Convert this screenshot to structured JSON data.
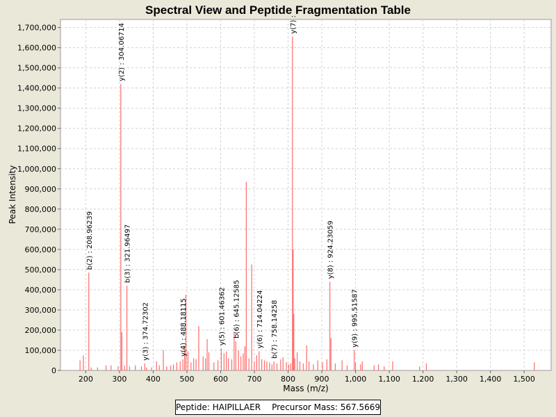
{
  "colors": {
    "background": "#eae8d9",
    "plot_bg": "#ffffff",
    "peak": "#ff6a6a",
    "grid": "#d0d0d0",
    "text": "#000000"
  },
  "footer": {
    "peptide": "Peptide: HAIPILLAER",
    "precursor": "Precursor Mass: 567.5669"
  },
  "chart_data": {
    "type": "bar",
    "title": "Spectral View and Peptide Fragmentation Table",
    "xlabel": "Mass (m/z)",
    "ylabel": "Peak Intensity",
    "xlim": [
      125,
      1580
    ],
    "ylim": [
      0,
      1740000
    ],
    "grid": true,
    "x_ticks": [
      200,
      300,
      400,
      500,
      600,
      700,
      800,
      900,
      1000,
      1100,
      1200,
      1300,
      1400,
      1500
    ],
    "x_tick_labels": [
      "200",
      "300",
      "400",
      "500",
      "600",
      "700",
      "800",
      "900",
      "1,000",
      "1,100",
      "1,200",
      "1,300",
      "1,400",
      "1,500"
    ],
    "y_ticks": [
      0,
      100000,
      200000,
      300000,
      400000,
      500000,
      600000,
      700000,
      800000,
      900000,
      1000000,
      1100000,
      1200000,
      1300000,
      1400000,
      1500000,
      1600000,
      1700000
    ],
    "y_tick_labels": [
      "0",
      "100,000",
      "200,000",
      "300,000",
      "400,000",
      "500,000",
      "600,000",
      "700,000",
      "800,000",
      "900,000",
      "1,000,000",
      "1,100,000",
      "1,200,000",
      "1,300,000",
      "1,400,000",
      "1,500,000",
      "1,600,000",
      "1,700,000"
    ],
    "peaks": [
      [
        183,
        50000
      ],
      [
        193,
        75000
      ],
      [
        209,
        485000
      ],
      [
        216,
        15000
      ],
      [
        235,
        15000
      ],
      [
        260,
        25000
      ],
      [
        275,
        25000
      ],
      [
        296,
        20000
      ],
      [
        304,
        1420000
      ],
      [
        307,
        190000
      ],
      [
        315,
        25000
      ],
      [
        322,
        420000
      ],
      [
        330,
        20000
      ],
      [
        347,
        25000
      ],
      [
        365,
        20000
      ],
      [
        375,
        35000
      ],
      [
        380,
        15000
      ],
      [
        395,
        15000
      ],
      [
        410,
        45000
      ],
      [
        418,
        25000
      ],
      [
        430,
        100000
      ],
      [
        440,
        20000
      ],
      [
        452,
        25000
      ],
      [
        460,
        30000
      ],
      [
        470,
        40000
      ],
      [
        480,
        45000
      ],
      [
        488,
        55000
      ],
      [
        493,
        120000
      ],
      [
        497,
        375000
      ],
      [
        503,
        95000
      ],
      [
        512,
        40000
      ],
      [
        520,
        60000
      ],
      [
        527,
        55000
      ],
      [
        535,
        220000
      ],
      [
        548,
        70000
      ],
      [
        555,
        60000
      ],
      [
        560,
        155000
      ],
      [
        565,
        90000
      ],
      [
        580,
        40000
      ],
      [
        592,
        50000
      ],
      [
        602,
        110000
      ],
      [
        610,
        85000
      ],
      [
        617,
        95000
      ],
      [
        623,
        60000
      ],
      [
        633,
        55000
      ],
      [
        640,
        185000
      ],
      [
        645,
        145000
      ],
      [
        653,
        100000
      ],
      [
        660,
        70000
      ],
      [
        667,
        85000
      ],
      [
        672,
        120000
      ],
      [
        676,
        935000
      ],
      [
        684,
        60000
      ],
      [
        692,
        525000
      ],
      [
        700,
        45000
      ],
      [
        707,
        75000
      ],
      [
        714,
        95000
      ],
      [
        722,
        55000
      ],
      [
        730,
        50000
      ],
      [
        737,
        45000
      ],
      [
        745,
        40000
      ],
      [
        752,
        30000
      ],
      [
        758,
        45000
      ],
      [
        767,
        35000
      ],
      [
        778,
        55000
      ],
      [
        785,
        65000
      ],
      [
        795,
        40000
      ],
      [
        802,
        30000
      ],
      [
        808,
        35000
      ],
      [
        813,
        1655000
      ],
      [
        815,
        600000
      ],
      [
        817,
        280000
      ],
      [
        820,
        60000
      ],
      [
        827,
        90000
      ],
      [
        835,
        45000
      ],
      [
        845,
        35000
      ],
      [
        855,
        125000
      ],
      [
        862,
        45000
      ],
      [
        875,
        30000
      ],
      [
        888,
        50000
      ],
      [
        902,
        40000
      ],
      [
        915,
        55000
      ],
      [
        924,
        440000
      ],
      [
        927,
        160000
      ],
      [
        940,
        35000
      ],
      [
        960,
        50000
      ],
      [
        975,
        25000
      ],
      [
        996,
        100000
      ],
      [
        1000,
        40000
      ],
      [
        1015,
        30000
      ],
      [
        1020,
        45000
      ],
      [
        1055,
        25000
      ],
      [
        1068,
        30000
      ],
      [
        1085,
        20000
      ],
      [
        1110,
        45000
      ],
      [
        1190,
        20000
      ],
      [
        1210,
        35000
      ],
      [
        1530,
        40000
      ]
    ],
    "annotations": [
      {
        "text": "b(2) : 208.96239",
        "x": 209,
        "y": 485000
      },
      {
        "text": "y(2) : 304.06714",
        "x": 304,
        "y": 1420000
      },
      {
        "text": "b(3) : 321.96497",
        "x": 322,
        "y": 420000
      },
      {
        "text": "y(3) : 374.72302",
        "x": 375,
        "y": 35000
      },
      {
        "text": "y(4) : 488.18115",
        "x": 488,
        "y": 55000
      },
      {
        "text": "y(5) : 601.46362",
        "x": 602,
        "y": 110000
      },
      {
        "text": "b(6) : 645.12585",
        "x": 645,
        "y": 145000
      },
      {
        "text": "y(6) : 714.04224",
        "x": 714,
        "y": 95000
      },
      {
        "text": "b(7) : 758.14258",
        "x": 758,
        "y": 45000
      },
      {
        "text": "y(7) :",
        "x": 813,
        "y": 1655000
      },
      {
        "text": "y(8) : 924.23059",
        "x": 924,
        "y": 440000
      },
      {
        "text": "y(9) : 995.51587",
        "x": 996,
        "y": 100000
      }
    ]
  }
}
